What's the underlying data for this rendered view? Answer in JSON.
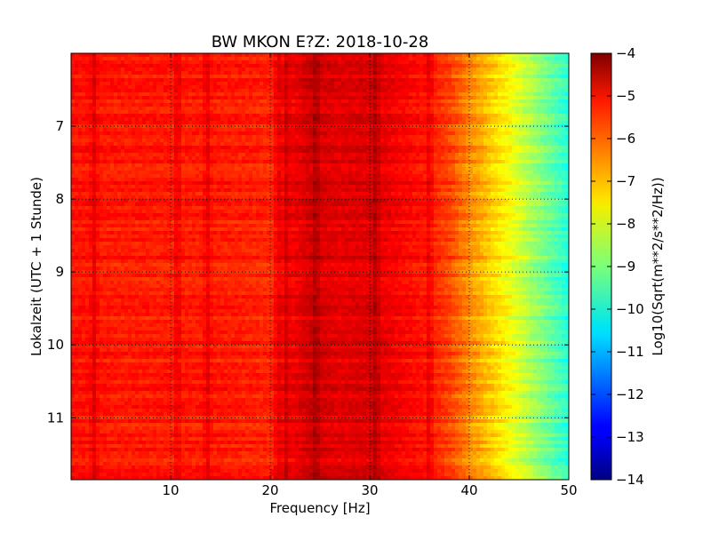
{
  "chart_data": {
    "type": "heatmap",
    "title": "BW MKON E?Z: 2018-10-28",
    "xlabel": "Frequency [Hz]",
    "ylabel": "Lokalzeit (UTC + 1 Stunde)",
    "xlim": [
      0,
      50
    ],
    "ylim": [
      6,
      11.85
    ],
    "x_ticks": [
      10,
      20,
      30,
      40,
      50
    ],
    "y_ticks": [
      7,
      8,
      9,
      10,
      11
    ],
    "y_inverted": true,
    "grid": true,
    "colormap": "jet",
    "colorbar": {
      "label": "Log10(Sqrt(m**2/s**2/Hz))",
      "min": -14,
      "max": -4,
      "ticks": [
        -4,
        -5,
        -6,
        -7,
        -8,
        -9,
        -10,
        -11,
        -12,
        -13,
        -14
      ]
    },
    "frequency_profile": {
      "frequency_hz": [
        0,
        5,
        10,
        15,
        20,
        24,
        27,
        30,
        33,
        36,
        38,
        40,
        42,
        44,
        46,
        48,
        50
      ],
      "log_amplitude": [
        -5.4,
        -5.5,
        -5.5,
        -5.5,
        -5.6,
        -4.8,
        -5.0,
        -4.9,
        -5.2,
        -5.5,
        -5.9,
        -6.6,
        -7.2,
        -7.8,
        -8.5,
        -9.2,
        -9.9
      ]
    },
    "strong_lines_hz": [
      2.3,
      10.7,
      13.7,
      20.8,
      21.6,
      24.6,
      30.6,
      36.0
    ]
  }
}
